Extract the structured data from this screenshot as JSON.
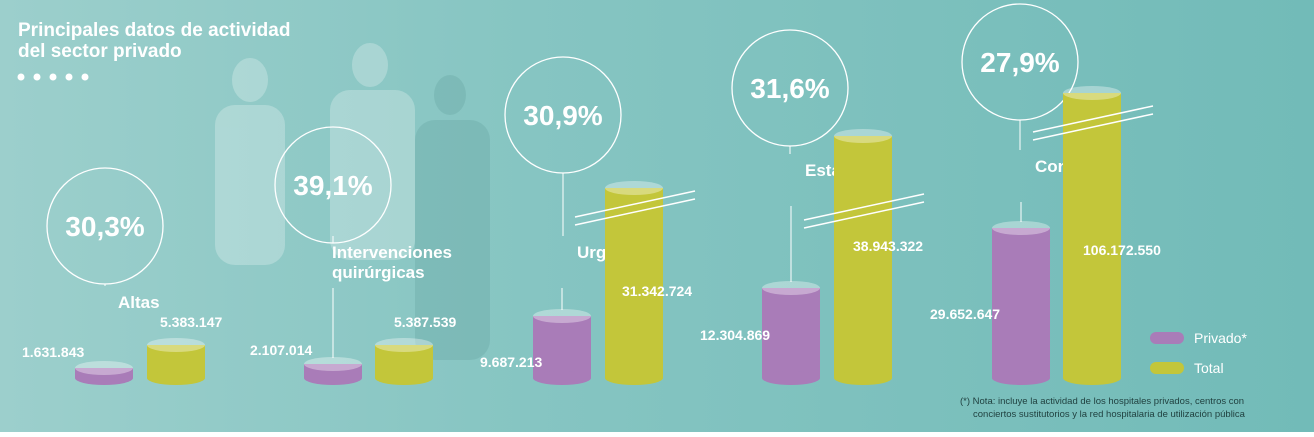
{
  "header": {
    "title_lines": [
      "Principales datos de actividad",
      "del sector privado"
    ]
  },
  "groups": [
    {
      "label": [
        "Altas"
      ],
      "percent": "30,3%",
      "private": "1.631.843",
      "total": "5.383.147"
    },
    {
      "label": [
        "Intervenciones",
        "quirúrgicas"
      ],
      "percent": "39,1%",
      "private": "2.107.014",
      "total": "5.387.539"
    },
    {
      "label": [
        "Urgencias"
      ],
      "percent": "30,9%",
      "private": "9.687.213",
      "total": "31.342.724"
    },
    {
      "label": [
        "Estancias"
      ],
      "percent": "31,6%",
      "private": "12.304.869",
      "total": "38.943.322"
    },
    {
      "label": [
        "Consultas"
      ],
      "percent": "27,9%",
      "private": "29.652.647",
      "total": "106.172.550"
    }
  ],
  "legend": {
    "private": "Privado*",
    "total": "Total"
  },
  "colors": {
    "private": "#a97cb8",
    "total": "#c3c63a"
  },
  "note": [
    "(*) Nota: incluye la actividad de los hospitales privados, centros con",
    "conciertos sustitutorios y la red hospitalaria de utilización pública"
  ]
}
